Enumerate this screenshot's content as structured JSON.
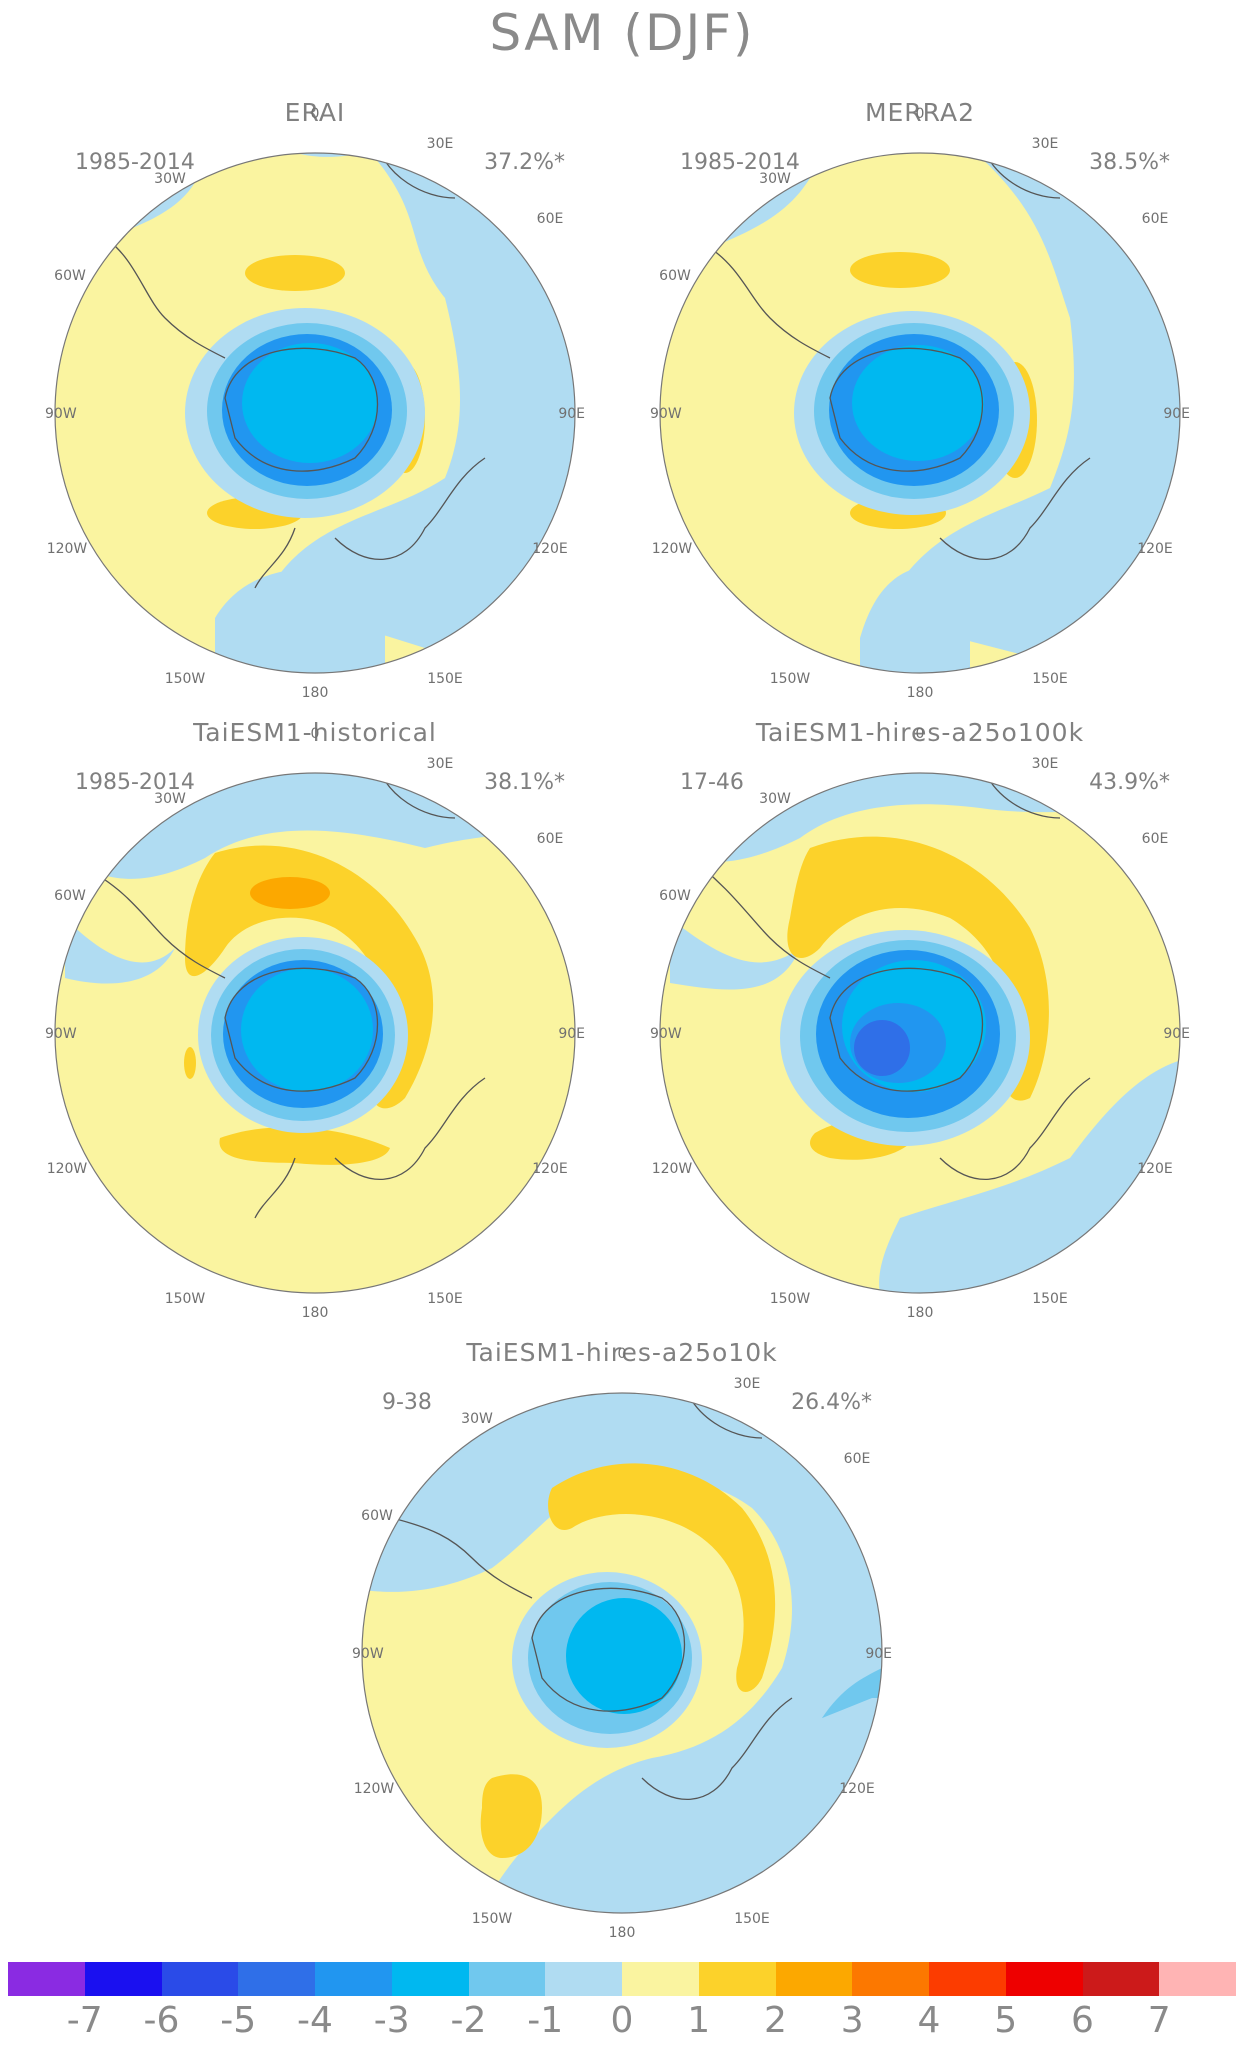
{
  "title": "SAM (DJF)",
  "panels": [
    {
      "name": "ERAI",
      "period": "1985-2014",
      "percent": "37.2%*"
    },
    {
      "name": "MERRA2",
      "period": "1985-2014",
      "percent": "38.5%*"
    },
    {
      "name": "TaiESM1-historical",
      "period": "1985-2014",
      "percent": "38.1%*"
    },
    {
      "name": "TaiESM1-hires-a25o100k",
      "period": "17-46",
      "percent": "43.9%*"
    },
    {
      "name": "TaiESM1-hires-a25o10k",
      "period": "9-38",
      "percent": "26.4%*"
    }
  ],
  "longitude_labels": [
    "0",
    "30E",
    "60E",
    "90E",
    "120E",
    "150E",
    "180",
    "150W",
    "120W",
    "90W",
    "60W",
    "30W"
  ],
  "colorbar": {
    "colors": [
      "#8a2be2",
      "#1a10f0",
      "#2a4be8",
      "#2f6fe8",
      "#2196f0",
      "#00b8f0",
      "#70c8ee",
      "#b0dcf2",
      "#faf4a0",
      "#fcd22a",
      "#fca800",
      "#fc7800",
      "#fc3c00",
      "#ee0000",
      "#cc1a1a",
      "#ffb4b4"
    ],
    "ticks": [
      "-7",
      "-6",
      "-5",
      "-4",
      "-3",
      "-2",
      "-1",
      "0",
      "1",
      "2",
      "3",
      "4",
      "5",
      "6",
      "7"
    ]
  },
  "palette": {
    "neg1": "#b0dcf2",
    "neg2": "#70c8ee",
    "neg3": "#00b8f0",
    "neg4": "#2196f0",
    "neg5": "#2f6fe8",
    "pos0": "#faf4a0",
    "pos1": "#fcd22a",
    "pos2": "#fca800",
    "coast": "#555555"
  }
}
